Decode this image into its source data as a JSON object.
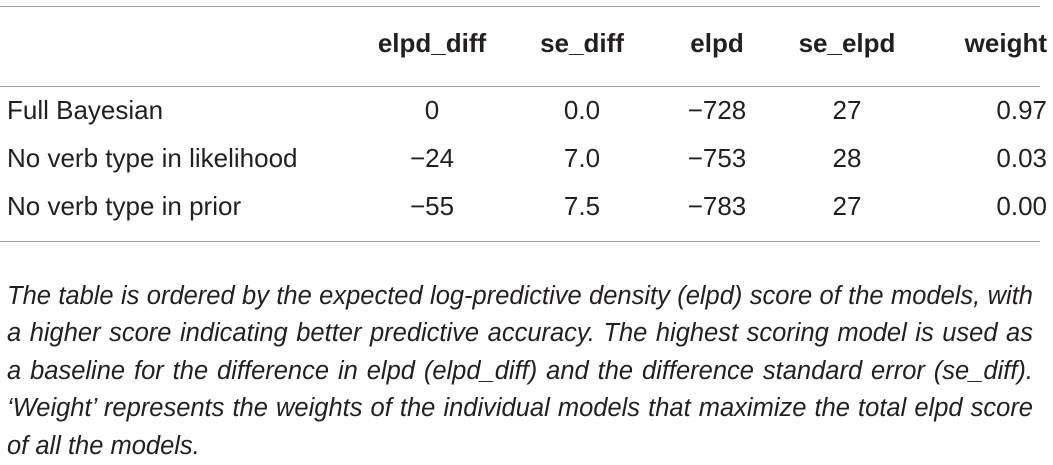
{
  "table": {
    "headers": {
      "model": "",
      "elpd_diff": "elpd_diff",
      "se_diff": "se_diff",
      "elpd": "elpd",
      "se_elpd": "se_elpd",
      "weight": "weight"
    },
    "rows": [
      {
        "model": "Full Bayesian",
        "elpd_diff": "0",
        "se_diff": "0.0",
        "elpd": "−728",
        "se_elpd": "27",
        "weight": "0.97"
      },
      {
        "model": "No verb type in likelihood",
        "elpd_diff": "−24",
        "se_diff": "7.0",
        "elpd": "−753",
        "se_elpd": "28",
        "weight": "0.03"
      },
      {
        "model": "No verb type in prior",
        "elpd_diff": "−55",
        "se_diff": "7.5",
        "elpd": "−783",
        "se_elpd": "27",
        "weight": "0.00"
      }
    ]
  },
  "caption": "The table is ordered by the expected log-predictive density (elpd) score of the models, with a higher score indicating better predictive accuracy. The highest scoring model is used as a baseline for the difference in elpd (elpd_diff) and the difference standard error (se_diff). ‘Weight’ represents the weights of the individual models that maximize the total elpd score of all the models."
}
